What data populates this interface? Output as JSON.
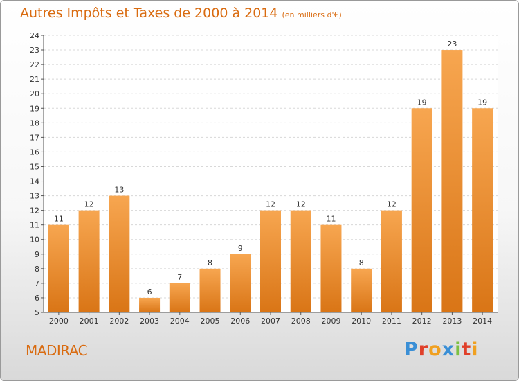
{
  "header": {
    "title": "Autres Impôts et Taxes de 2000 à 2014",
    "subtitle": "(en milliers d'€)"
  },
  "footer": {
    "town": "MADIRAC",
    "brand": "Proxiti",
    "brand_colors": [
      "#3a8fd6",
      "#e0402a",
      "#f0a020",
      "#3a8fd6",
      "#7cc043",
      "#e0402a",
      "#f0a020"
    ]
  },
  "colors": {
    "bar_top": "#f7a650",
    "bar_bottom": "#d97516",
    "accent": "#d96b10",
    "grid": "#d8d8d8"
  },
  "chart_data": {
    "type": "bar",
    "title": "Autres Impôts et Taxes de 2000 à 2014",
    "subtitle": "(en milliers d'€)",
    "xlabel": "",
    "ylabel": "",
    "categories": [
      "2000",
      "2001",
      "2002",
      "2003",
      "2004",
      "2005",
      "2006",
      "2007",
      "2008",
      "2009",
      "2010",
      "2011",
      "2012",
      "2013",
      "2014"
    ],
    "values": [
      11,
      12,
      13,
      6,
      7,
      8,
      9,
      12,
      12,
      11,
      8,
      12,
      19,
      23,
      19
    ],
    "ylim": [
      5,
      24
    ],
    "yticks": [
      5,
      6,
      7,
      8,
      9,
      10,
      11,
      12,
      13,
      14,
      15,
      16,
      17,
      18,
      19,
      20,
      21,
      22,
      23,
      24
    ],
    "grid": true,
    "legend": "none"
  }
}
